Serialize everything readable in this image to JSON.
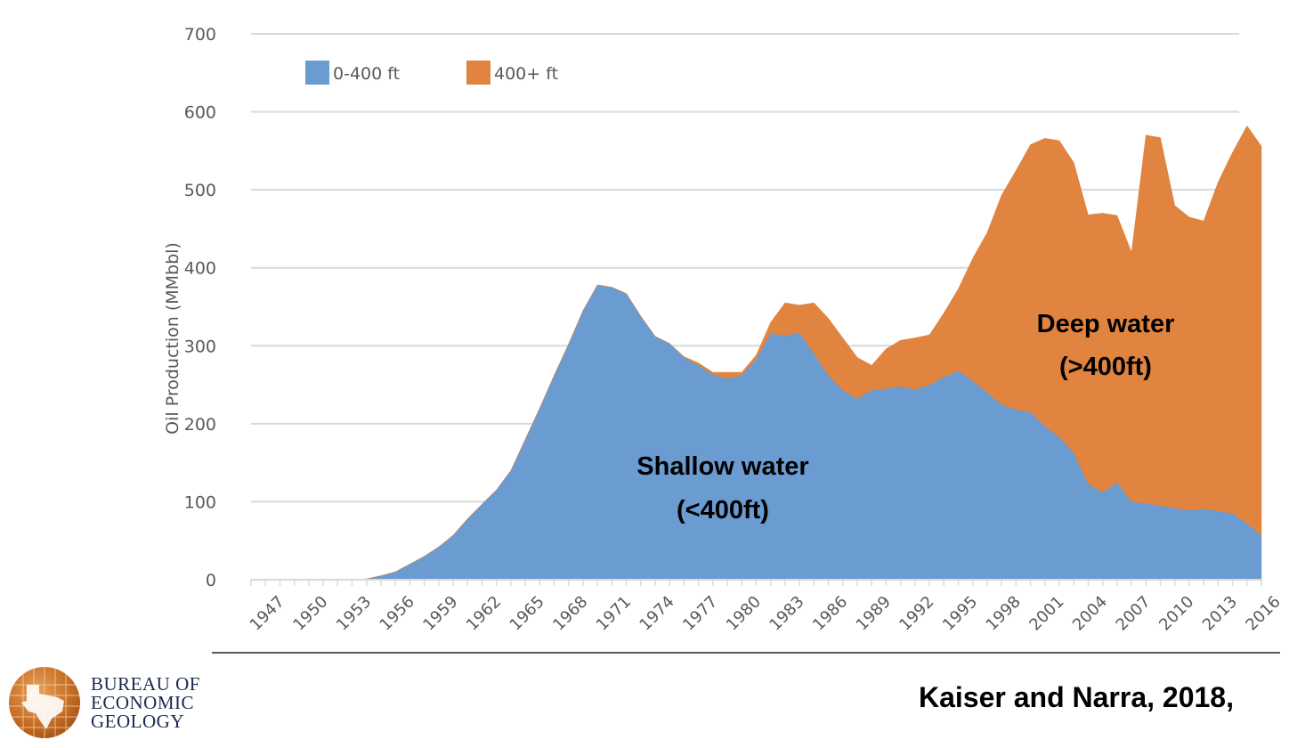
{
  "chart_data": {
    "type": "area",
    "stacked": true,
    "title": "",
    "xlabel": "",
    "ylabel": "Oil Production  (MMbbl)",
    "ylim": [
      0,
      700
    ],
    "yticks": [
      0,
      100,
      200,
      300,
      400,
      500,
      600,
      700
    ],
    "grid": true,
    "legend_position": "top-left",
    "x_tick_labels": [
      "1947",
      "1950",
      "1953",
      "1956",
      "1959",
      "1962",
      "1965",
      "1968",
      "1971",
      "1974",
      "1977",
      "1980",
      "1983",
      "1986",
      "1989",
      "1992",
      "1995",
      "1998",
      "2001",
      "2004",
      "2007",
      "2010",
      "2013",
      "2016"
    ],
    "x": [
      1947,
      1948,
      1949,
      1950,
      1951,
      1952,
      1953,
      1954,
      1955,
      1956,
      1957,
      1958,
      1959,
      1960,
      1961,
      1962,
      1963,
      1964,
      1965,
      1966,
      1967,
      1968,
      1969,
      1970,
      1971,
      1972,
      1973,
      1974,
      1975,
      1976,
      1977,
      1978,
      1979,
      1980,
      1981,
      1982,
      1983,
      1984,
      1985,
      1986,
      1987,
      1988,
      1989,
      1990,
      1991,
      1992,
      1993,
      1994,
      1995,
      1996,
      1997,
      1998,
      1999,
      2000,
      2001,
      2002,
      2003,
      2004,
      2005,
      2006,
      2007,
      2008,
      2009,
      2010,
      2011,
      2012,
      2013,
      2014,
      2015,
      2016,
      2017
    ],
    "series": [
      {
        "name": "0-400 ft",
        "color": "#6a9bd1",
        "values": [
          0,
          0,
          0,
          0,
          0,
          0,
          0,
          0,
          1,
          5,
          10,
          20,
          30,
          42,
          57,
          78,
          97,
          115,
          140,
          180,
          220,
          262,
          302,
          345,
          378,
          375,
          367,
          338,
          312,
          303,
          285,
          275,
          263,
          258,
          262,
          283,
          316,
          313,
          317,
          290,
          262,
          243,
          232,
          243,
          245,
          248,
          244,
          250,
          260,
          268,
          255,
          240,
          225,
          218,
          215,
          197,
          183,
          163,
          123,
          112,
          125,
          100,
          98,
          95,
          92,
          89,
          91,
          88,
          85,
          72,
          57
        ]
      },
      {
        "name": "400+ ft",
        "color": "#e08440",
        "values": [
          0,
          0,
          0,
          0,
          0,
          0,
          0,
          0,
          0,
          0,
          0,
          0,
          0,
          0,
          0,
          0,
          0,
          0,
          0,
          0,
          0,
          0,
          0,
          0,
          0,
          0,
          0,
          0,
          0,
          0,
          1,
          3,
          3,
          8,
          4,
          5,
          14,
          42,
          35,
          65,
          73,
          67,
          53,
          32,
          51,
          59,
          66,
          64,
          82,
          105,
          157,
          205,
          268,
          307,
          343,
          369,
          380,
          372,
          345,
          358,
          342,
          320,
          472,
          472,
          388,
          376,
          369,
          422,
          463,
          510,
          499
        ]
      }
    ],
    "annotations": [
      {
        "line1": "Shallow water",
        "line2": "(<400ft)"
      },
      {
        "line1": "Deep water",
        "line2": "(>400ft)"
      }
    ]
  },
  "footer": {
    "logo": {
      "line1": "BUREAU OF",
      "line2": "ECONOMIC",
      "line3": "GEOLOGY"
    },
    "citation": "Kaiser and Narra, 2018,"
  }
}
